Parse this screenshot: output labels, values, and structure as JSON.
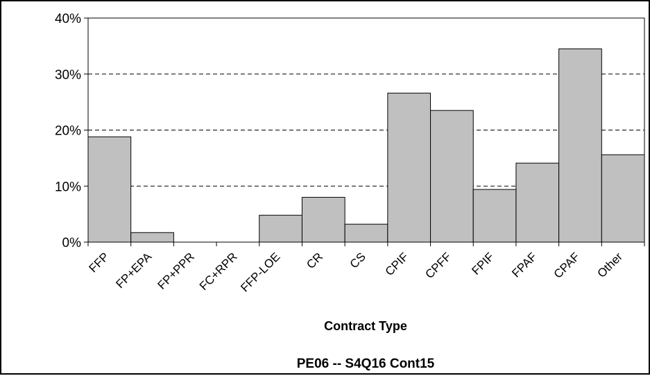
{
  "chart_data": {
    "type": "bar",
    "title": "PE06 -- S4Q16   Cont15",
    "xlabel": "Contract Type",
    "ylabel": "",
    "categories": [
      "FFP",
      "FP+EPA",
      "FP+PPR",
      "FC+RPR",
      "FFP-LOE",
      "CR",
      "CS",
      "CPIF",
      "CPFF",
      "FPIF",
      "FPAF",
      "CPAF",
      "Other"
    ],
    "values": [
      18.8,
      1.7,
      0,
      0,
      4.8,
      8.0,
      3.2,
      26.6,
      23.5,
      9.4,
      14.1,
      34.5,
      15.6
    ],
    "ylim": [
      0,
      40
    ],
    "yticks": [
      0,
      10,
      20,
      30,
      40
    ],
    "ytick_labels": [
      "0%",
      "10%",
      "20%",
      "30%",
      "40%"
    ],
    "grid": "horizontal dashed",
    "bar_color": "#c0c0c0",
    "bar_edge_color": "#000000"
  }
}
